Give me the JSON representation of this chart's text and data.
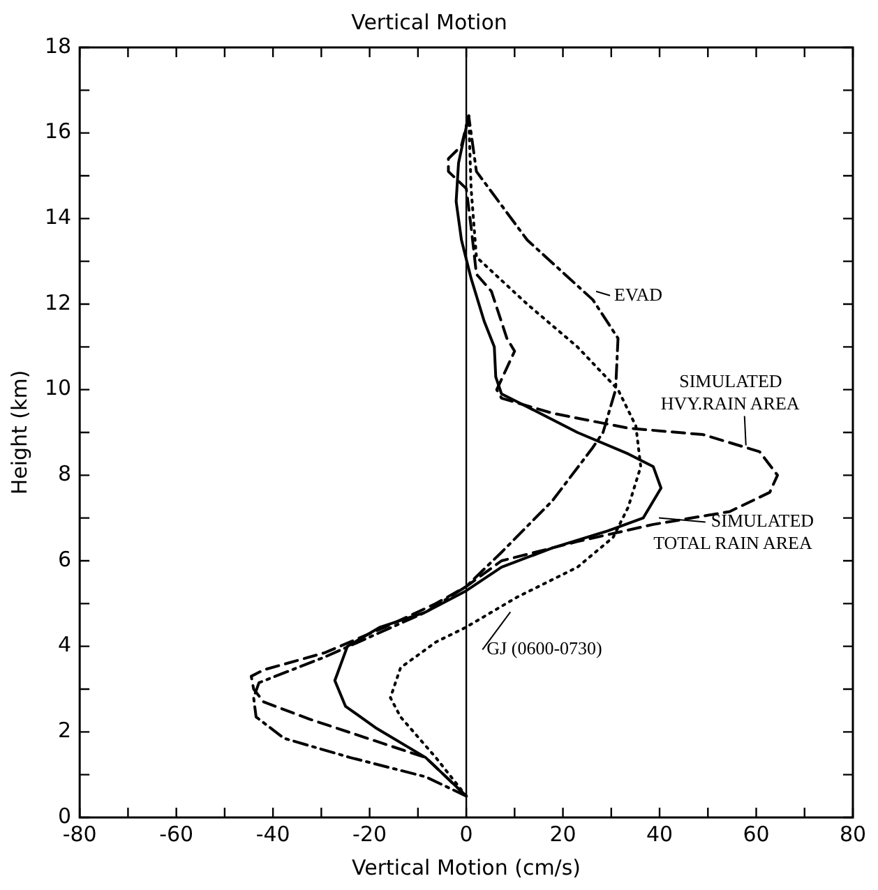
{
  "chart_data": {
    "type": "line",
    "title": "Vertical Motion",
    "xlabel": "Vertical Motion (cm/s)",
    "ylabel": "Height (km)",
    "xlim": [
      -80,
      80
    ],
    "xticks": [
      -80,
      {
        "value": -70,
        "label": null
      },
      -60,
      {
        "value": -50,
        "label": null
      },
      -40,
      {
        "value": -30,
        "label": null
      },
      -20,
      {
        "value": -10,
        "label": null
      },
      0,
      {
        "value": 10,
        "label": null
      },
      20,
      {
        "value": 30,
        "label": null
      },
      40,
      {
        "value": 50,
        "label": null
      },
      60,
      {
        "value": 70,
        "label": null
      },
      80
    ],
    "ylim": [
      0,
      18
    ],
    "yticks": [
      0,
      {
        "value": 1,
        "label": null
      },
      2,
      {
        "value": 3,
        "label": null
      },
      4,
      {
        "value": 5,
        "label": null
      },
      6,
      {
        "value": 7,
        "label": null
      },
      8,
      {
        "value": 9,
        "label": null
      },
      10,
      {
        "value": 11,
        "label": null
      },
      12,
      {
        "value": 13,
        "label": null
      },
      14,
      {
        "value": 15,
        "label": null
      },
      16,
      {
        "value": 17,
        "label": null
      },
      18
    ],
    "grid": false,
    "legend": false,
    "marker": "none",
    "ref_lines": [
      {
        "axis": "x",
        "value": 0,
        "color": "#000000"
      }
    ],
    "series": [
      {
        "color": "#000000",
        "line_style": "solid",
        "x": [
          0,
          -8.4,
          -18.8,
          -25,
          -27.2,
          -24.6,
          -17.8,
          -8.4,
          0,
          7.3,
          17.8,
          29.3,
          36.6,
          40.3,
          38.7,
          33.5,
          23,
          12.6,
          7.3,
          6.1,
          5.8,
          3.7,
          1,
          -1,
          -2.1,
          -1.6,
          0.5
        ],
        "values": [
          0.5,
          1.4,
          2.1,
          2.6,
          3.2,
          4,
          4.45,
          4.8,
          5.3,
          5.85,
          6.3,
          6.7,
          7,
          7.7,
          8.2,
          8.5,
          9,
          9.6,
          9.9,
          10.3,
          11,
          11.6,
          12.6,
          13.5,
          14.4,
          15.3,
          16.4
        ]
      },
      {
        "color": "#000000",
        "line_style": "dashed",
        "x": [
          0,
          -8.4,
          -32.5,
          -41.9,
          -44,
          -44.5,
          -41.9,
          -29.3,
          -16.8,
          -6.3,
          0,
          7.3,
          23,
          38.7,
          54.5,
          62.8,
          64.4,
          60.7,
          49,
          33.5,
          17.8,
          7.3,
          6.3,
          10,
          8.4,
          5.2,
          2.1,
          1,
          0,
          -3.7,
          -3.7,
          -1,
          0.5
        ],
        "values": [
          0.5,
          1.4,
          2.3,
          2.7,
          3,
          3.3,
          3.45,
          3.85,
          4.45,
          5,
          5.4,
          6,
          6.45,
          6.85,
          7.15,
          7.6,
          8,
          8.55,
          8.95,
          9.1,
          9.45,
          9.8,
          10,
          10.9,
          11.2,
          12.3,
          12.7,
          13.8,
          14.7,
          15.1,
          15.4,
          15.7,
          16.4
        ]
      },
      {
        "color": "#000000",
        "line_style": "dashdot",
        "x": [
          0,
          -8.4,
          -24,
          -37.7,
          -43.5,
          -44,
          -42.9,
          -29.3,
          -8.4,
          0,
          7.3,
          17.8,
          26.2,
          28.3,
          30.9,
          31.4,
          26.2,
          12.6,
          2.1,
          0.5
        ],
        "values": [
          0.5,
          0.95,
          1.4,
          1.85,
          2.35,
          2.8,
          3.15,
          3.75,
          4.8,
          5.4,
          6.2,
          7.4,
          8.65,
          9,
          10,
          11.2,
          12.1,
          13.5,
          15.1,
          16.4
        ]
      },
      {
        "color": "#000000",
        "line_style": "dotted",
        "x": [
          0,
          -6.3,
          -13.6,
          -15.7,
          -13.6,
          -6.3,
          0,
          10.5,
          23,
          30.4,
          33.5,
          36.1,
          35.1,
          31.4,
          23,
          12.6,
          2.1,
          1,
          0.5
        ],
        "values": [
          0.5,
          1.4,
          2.35,
          2.8,
          3.5,
          4.1,
          4.45,
          5.15,
          5.85,
          6.55,
          7.25,
          8.2,
          9.15,
          10,
          11,
          12,
          13.1,
          14.7,
          16.4
        ]
      }
    ],
    "annotations": [
      {
        "text": "EVAD",
        "x": 26,
        "y": 12.2
      },
      {
        "text": "SIMULATED\nHVY.RAIN AREA",
        "x": 57,
        "y": 8.6
      },
      {
        "text": "SIMULATED\nTOTAL RAIN AREA",
        "x": 39,
        "y": 7.1
      },
      {
        "text": "GJ (0600-0730)",
        "x": 10,
        "y": 4.9
      }
    ]
  }
}
